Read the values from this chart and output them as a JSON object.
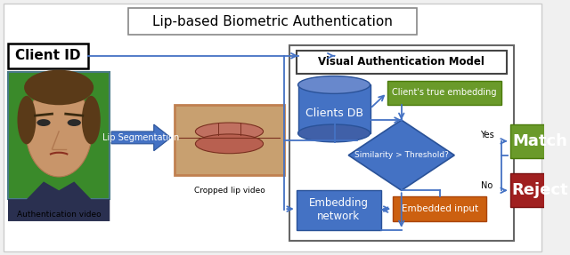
{
  "title": "Lip-based Biometric Authentication",
  "visual_auth_title": "Visual Authentication Model",
  "labels": {
    "client_id": "Client ID",
    "auth_video": "Authentication video",
    "lip_seg": "Lip Segmentation",
    "cropped_lip": "Cropped lip video",
    "clients_db": "Clients DB",
    "clients_true": "Client's true embedding",
    "similarity": "Similarity > Threshold?",
    "embedding_net": "Embedding\nnetwork",
    "embedded_input": "Embedded input",
    "match": "Match",
    "reject": "Reject",
    "yes": "Yes",
    "no": "No"
  },
  "colors": {
    "blue": "#4472c4",
    "blue_dark": "#2a5298",
    "blue_mid": "#5a82d4",
    "blue_light": "#6888cc",
    "green": "#6a9a2a",
    "green_dark": "#4a7a0a",
    "orange": "#cc6010",
    "orange_dark": "#aa4408",
    "red": "#a02020",
    "red_dark": "#7a1010",
    "white": "#ffffff",
    "black": "#000000",
    "bg": "#f0f0f0",
    "gray": "#888888",
    "face_green": "#3a8a2a",
    "face_skin": "#c8956a",
    "face_hair": "#5a3a18",
    "lip_bg": "#c8a070",
    "lip_pink": "#c07060",
    "lip_dark": "#7a3020"
  },
  "layout": {
    "fig_w": 6.4,
    "fig_h": 2.87,
    "dpi": 100
  }
}
